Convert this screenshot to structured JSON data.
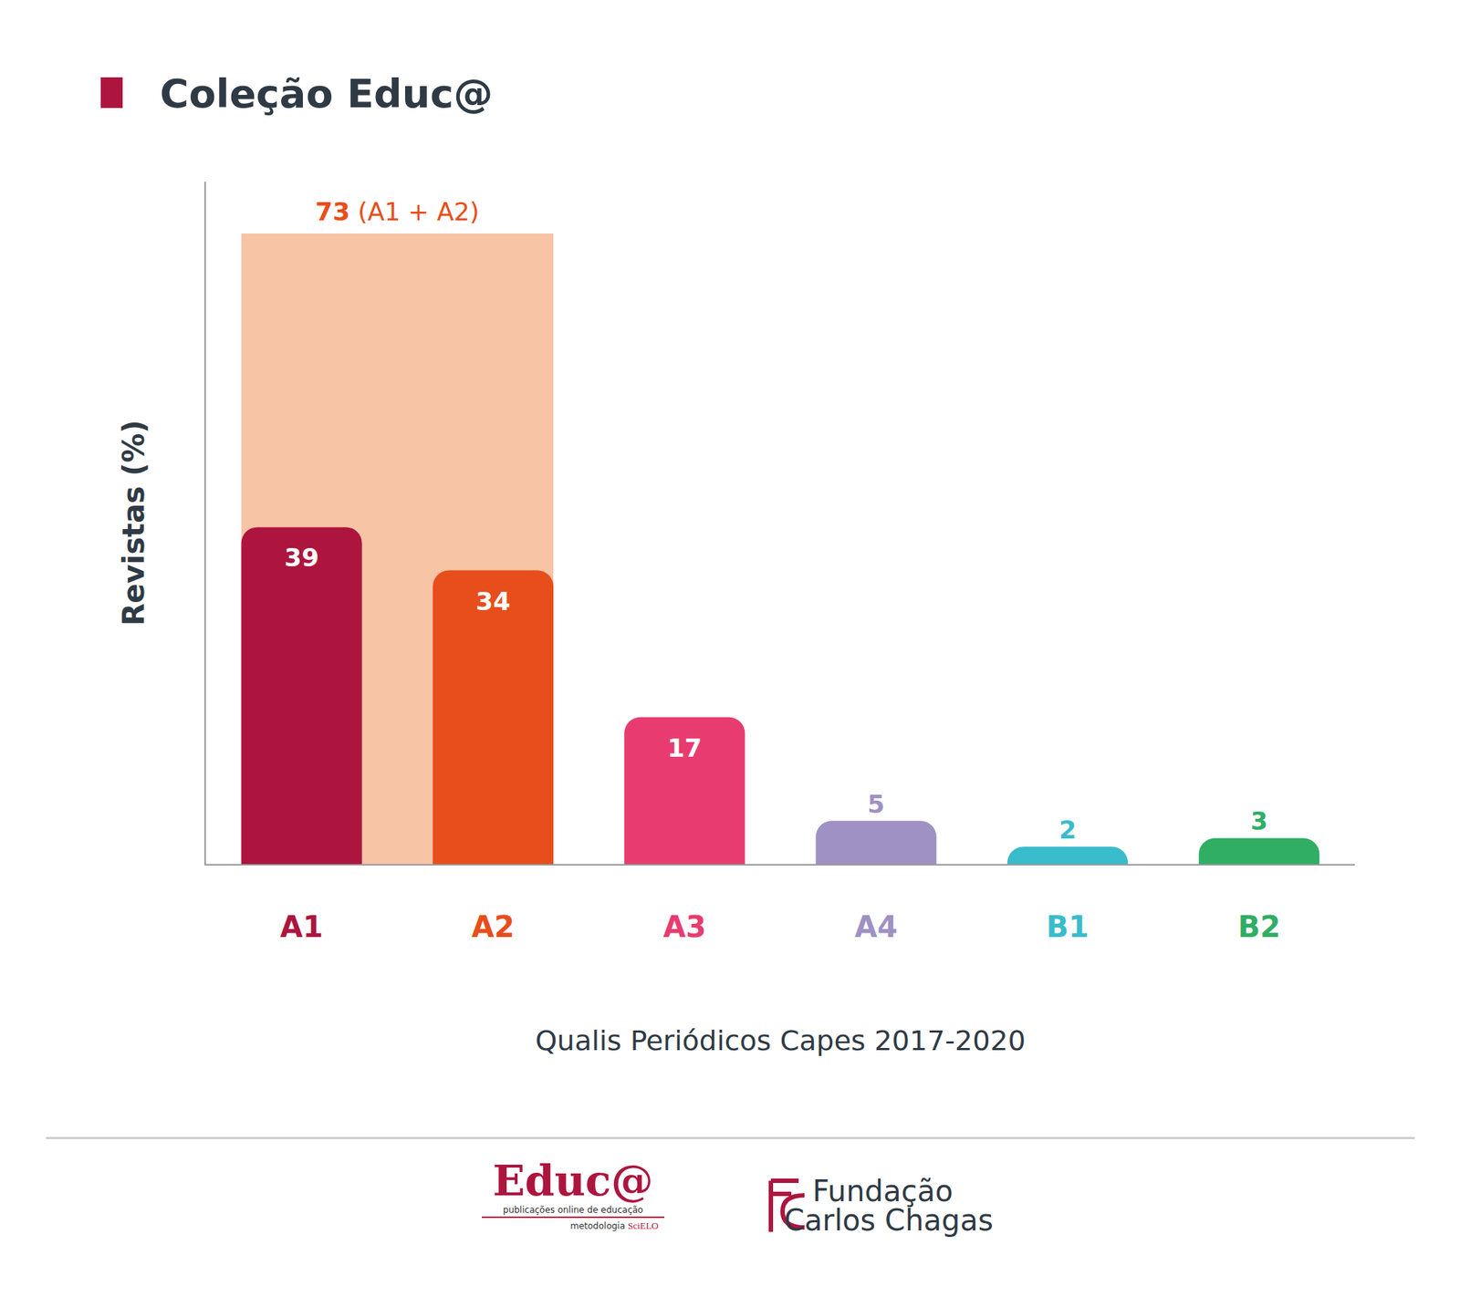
{
  "chart_data": {
    "type": "bar",
    "title": "Coleção Educ@",
    "categories": [
      "A1",
      "A2",
      "A3",
      "A4",
      "B1",
      "B2"
    ],
    "values": [
      39,
      34,
      17,
      5,
      2,
      3
    ],
    "colors": [
      "#ad153f",
      "#e84e1b",
      "#e83c70",
      "#9f91c4",
      "#39bccb",
      "#2fae64"
    ],
    "xlabel": "Qualis Periódicos Capes 2017-2020",
    "ylabel": "Revistas (%)",
    "ylim": [
      0,
      79
    ],
    "yticks": [],
    "tick_labels": "x",
    "grid": false,
    "data_labels": true,
    "group_total": {
      "value": 73,
      "label": "(A1 + A2)",
      "categories": [
        "A1",
        "A2"
      ],
      "color": "#f8c4a6",
      "label_color": "#e84e1b"
    }
  },
  "footer": {
    "educa_logo": {
      "name": "Educ@",
      "tagline": "publicações online de educação",
      "method": "metodologia",
      "partner": "SciELO"
    },
    "fcc_logo": {
      "line1": "Fundação",
      "line2": "Carlos Chagas"
    }
  }
}
